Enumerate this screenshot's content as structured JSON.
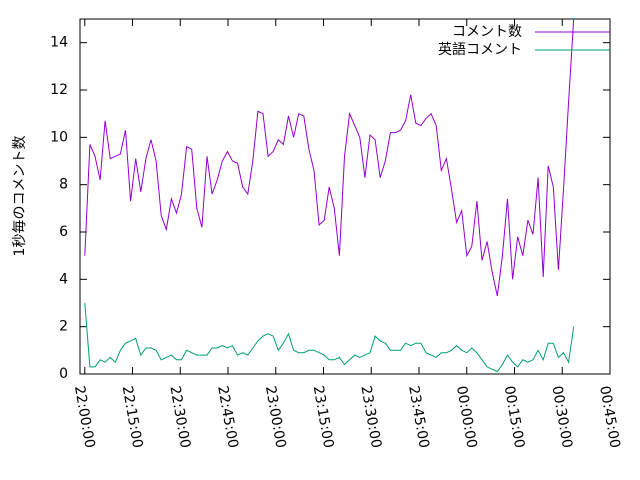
{
  "chart_data": {
    "type": "line",
    "ylabel": "1秒毎のコメント数",
    "x": [
      0,
      1.6,
      3.2,
      4.8,
      6.4,
      8,
      9.6,
      11.2,
      12.8,
      14.4,
      16,
      17.6,
      19.2,
      20.8,
      22.4,
      24,
      25.6,
      27.2,
      28.8,
      30.4,
      32,
      33.6,
      35.2,
      36.8,
      38.4,
      40,
      41.6,
      43.2,
      44.8,
      46.4,
      48,
      49.6,
      51.2,
      52.8,
      54.4,
      56,
      57.6,
      59.2,
      60.8,
      62.4,
      64,
      65.6,
      67.2,
      68.8,
      70.4,
      72,
      73.6,
      75.2,
      76.8,
      78.4,
      80,
      81.6,
      83.2,
      84.8,
      86.4,
      88,
      89.6,
      91.2,
      92.8,
      94.4,
      96,
      97.6,
      99.2,
      100.8,
      102.4,
      104,
      105.6,
      107.2,
      108.8,
      110.4,
      112,
      113.6,
      115.2,
      116.8,
      118.4,
      120,
      121.6,
      123.2,
      124.8,
      126.4,
      128,
      129.6,
      131.2,
      132.8,
      134.4,
      136,
      137.6,
      139.2,
      140.8,
      142.4,
      144,
      145.6,
      147.2,
      148.8,
      150.4,
      152,
      153.6
    ],
    "series": [
      {
        "name": "コメント数",
        "color": "#9400d3",
        "values": [
          5.0,
          9.7,
          9.2,
          8.2,
          10.7,
          9.1,
          9.2,
          9.3,
          10.3,
          7.3,
          9.1,
          7.7,
          9.1,
          9.9,
          9.0,
          6.7,
          6.1,
          7.4,
          6.8,
          7.6,
          9.6,
          9.5,
          7.0,
          6.2,
          9.2,
          7.6,
          8.2,
          9.0,
          9.4,
          9.0,
          8.9,
          7.9,
          7.6,
          9.0,
          11.1,
          11.0,
          9.2,
          9.4,
          9.9,
          9.7,
          10.9,
          10.0,
          11.0,
          10.9,
          9.5,
          8.6,
          6.3,
          6.5,
          7.9,
          7.0,
          5.0,
          9.2,
          11.0,
          10.5,
          10.0,
          8.3,
          10.1,
          9.9,
          8.3,
          9.0,
          10.2,
          10.2,
          10.3,
          10.7,
          11.8,
          10.6,
          10.5,
          10.8,
          11.0,
          10.5,
          8.6,
          9.1,
          7.8,
          6.4,
          6.9,
          5.0,
          5.4,
          7.3,
          4.8,
          5.6,
          4.3,
          3.3,
          5.0,
          7.4,
          4.0,
          5.8,
          5.0,
          6.5,
          5.9,
          8.3,
          4.1,
          8.8,
          7.9,
          4.4,
          7.8,
          11.5,
          15.0
        ]
      },
      {
        "name": "英語コメント",
        "color": "#009e73",
        "values": [
          3.0,
          0.3,
          0.3,
          0.6,
          0.5,
          0.7,
          0.5,
          1.0,
          1.3,
          1.4,
          1.5,
          0.8,
          1.1,
          1.1,
          1.0,
          0.6,
          0.7,
          0.8,
          0.6,
          0.6,
          1.0,
          0.9,
          0.8,
          0.8,
          0.8,
          1.1,
          1.1,
          1.2,
          1.1,
          1.2,
          0.8,
          0.9,
          0.8,
          1.1,
          1.4,
          1.6,
          1.7,
          1.6,
          1.0,
          1.3,
          1.7,
          1.0,
          0.9,
          0.9,
          1.0,
          1.0,
          0.9,
          0.8,
          0.6,
          0.6,
          0.7,
          0.4,
          0.6,
          0.8,
          0.7,
          0.8,
          0.9,
          1.6,
          1.4,
          1.3,
          1.0,
          1.0,
          1.0,
          1.3,
          1.2,
          1.3,
          1.3,
          0.9,
          0.8,
          0.7,
          0.9,
          0.9,
          1.0,
          1.2,
          1.0,
          0.9,
          1.1,
          0.9,
          0.6,
          0.3,
          0.2,
          0.1,
          0.4,
          0.8,
          0.5,
          0.3,
          0.6,
          0.5,
          0.6,
          1.0,
          0.6,
          1.3,
          1.3,
          0.7,
          0.9,
          0.5,
          2.0
        ]
      }
    ],
    "xlim": [
      -1.5,
      165
    ],
    "xticks": [
      {
        "value": 0,
        "label": "22:00:00"
      },
      {
        "value": 15,
        "label": "22:15:00"
      },
      {
        "value": 30,
        "label": "22:30:00"
      },
      {
        "value": 45,
        "label": "22:45:00"
      },
      {
        "value": 60,
        "label": "23:00:00"
      },
      {
        "value": 75,
        "label": "23:15:00"
      },
      {
        "value": 90,
        "label": "23:30:00"
      },
      {
        "value": 105,
        "label": "23:45:00"
      },
      {
        "value": 120,
        "label": "00:00:00"
      },
      {
        "value": 135,
        "label": "00:15:00"
      },
      {
        "value": 150,
        "label": "00:30:00"
      },
      {
        "value": 165,
        "label": "00:45:00"
      }
    ],
    "ylim": [
      0,
      15
    ],
    "yticks": [
      0,
      2,
      4,
      6,
      8,
      10,
      12,
      14
    ],
    "legend": "top-right"
  }
}
